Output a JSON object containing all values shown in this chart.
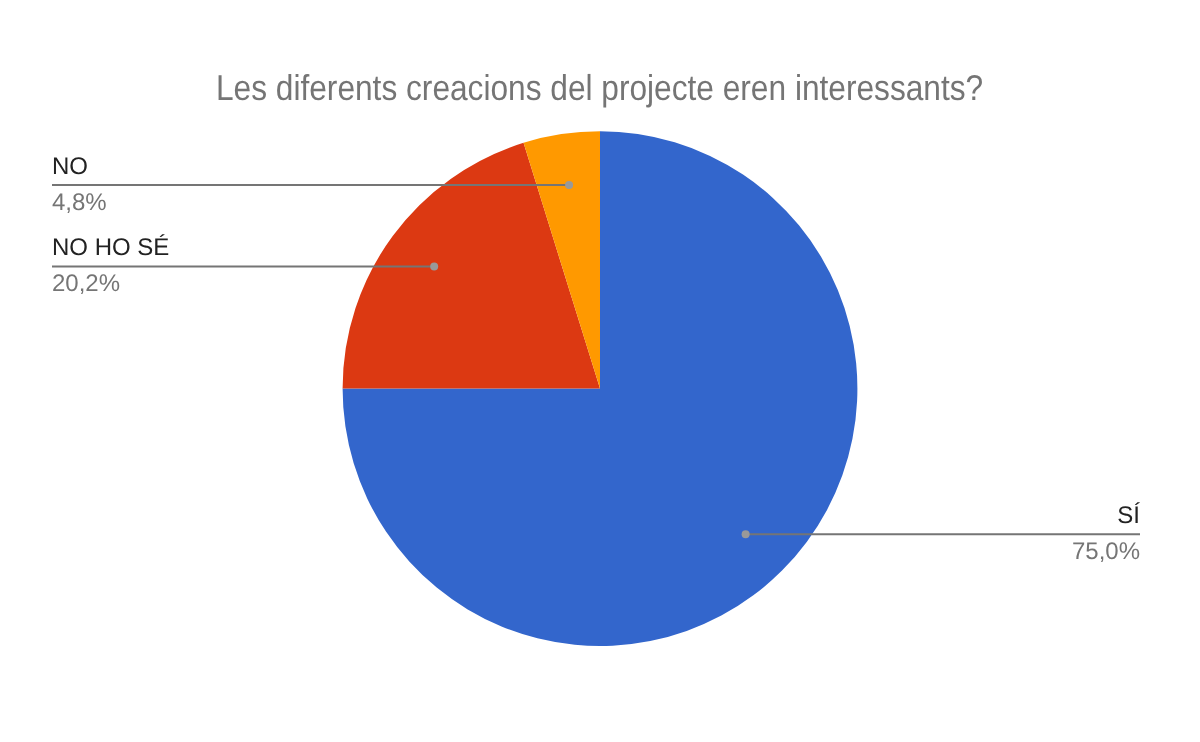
{
  "chart_data": {
    "type": "pie",
    "title": "Les diferents creacions del projecte eren interessants?",
    "categories": [
      "SÍ",
      "NO HO SÉ",
      "NO"
    ],
    "values": [
      75.0,
      20.2,
      4.8
    ],
    "value_labels": [
      "75,0%",
      "20,2%",
      "4,8%"
    ],
    "colors": [
      "#3366cc",
      "#dc3912",
      "#ff9900"
    ],
    "legend": false
  }
}
